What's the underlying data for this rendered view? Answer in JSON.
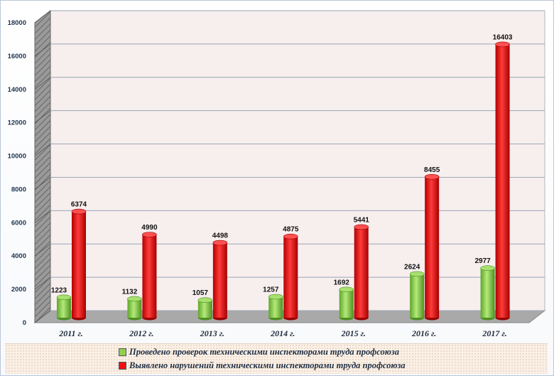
{
  "chart_data": {
    "type": "bar",
    "categories": [
      "2011 г.",
      "2012 г.",
      "2013 г.",
      "2014 г.",
      "2015 г.",
      "2016 г.",
      "2017 г."
    ],
    "series": [
      {
        "name": "Проведено проверок техническими инспекторами труда профсоюза",
        "values": [
          1223,
          1132,
          1057,
          1257,
          1692,
          2624,
          2977
        ],
        "color": "#8fd14f"
      },
      {
        "name": "Выявлено нарушений техническими инспекторами труда профсоюза",
        "values": [
          6374,
          4990,
          4498,
          4875,
          5441,
          8455,
          16403
        ],
        "color": "#ee1111"
      }
    ],
    "yticks": [
      "0",
      "2000",
      "4000",
      "6000",
      "8000",
      "10000",
      "12000",
      "14000",
      "16000",
      "18000"
    ],
    "ylim": [
      0,
      18000
    ],
    "grid": true,
    "legend_position": "bottom"
  },
  "legend": {
    "item1": "Проведено проверок техническими инспекторами труда профсоюза",
    "item2": "Выявлено нарушений техническими инспекторами труда профсоюза"
  }
}
